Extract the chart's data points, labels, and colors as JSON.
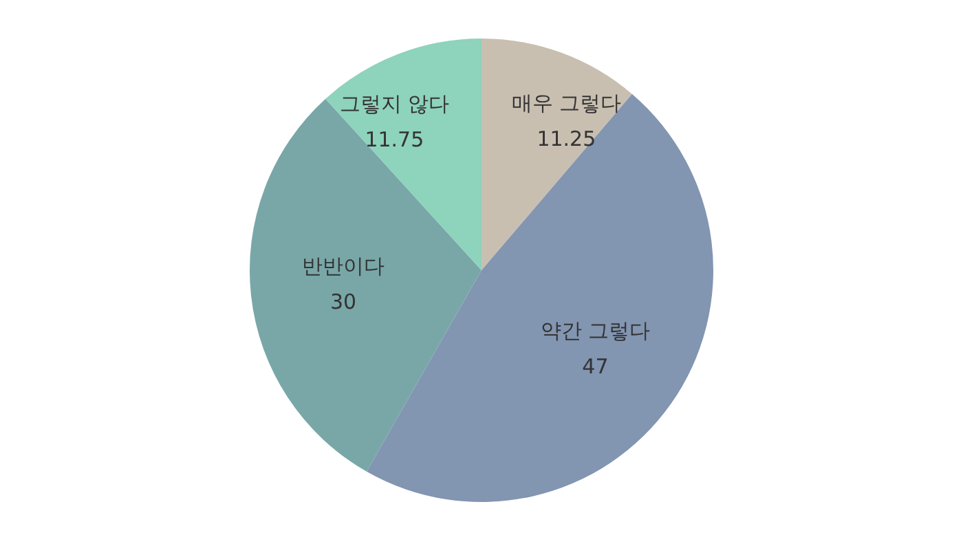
{
  "chart_data": {
    "type": "pie",
    "categories": [
      "매우 그렇다",
      "약간 그렇다",
      "반반이다",
      "그렇지 않다"
    ],
    "values": [
      11.25,
      47,
      30,
      11.75
    ],
    "colors": [
      "#c9bfb1",
      "#8295b1",
      "#79a7a8",
      "#8ed3bb"
    ],
    "data_labels": true,
    "legend": false
  }
}
